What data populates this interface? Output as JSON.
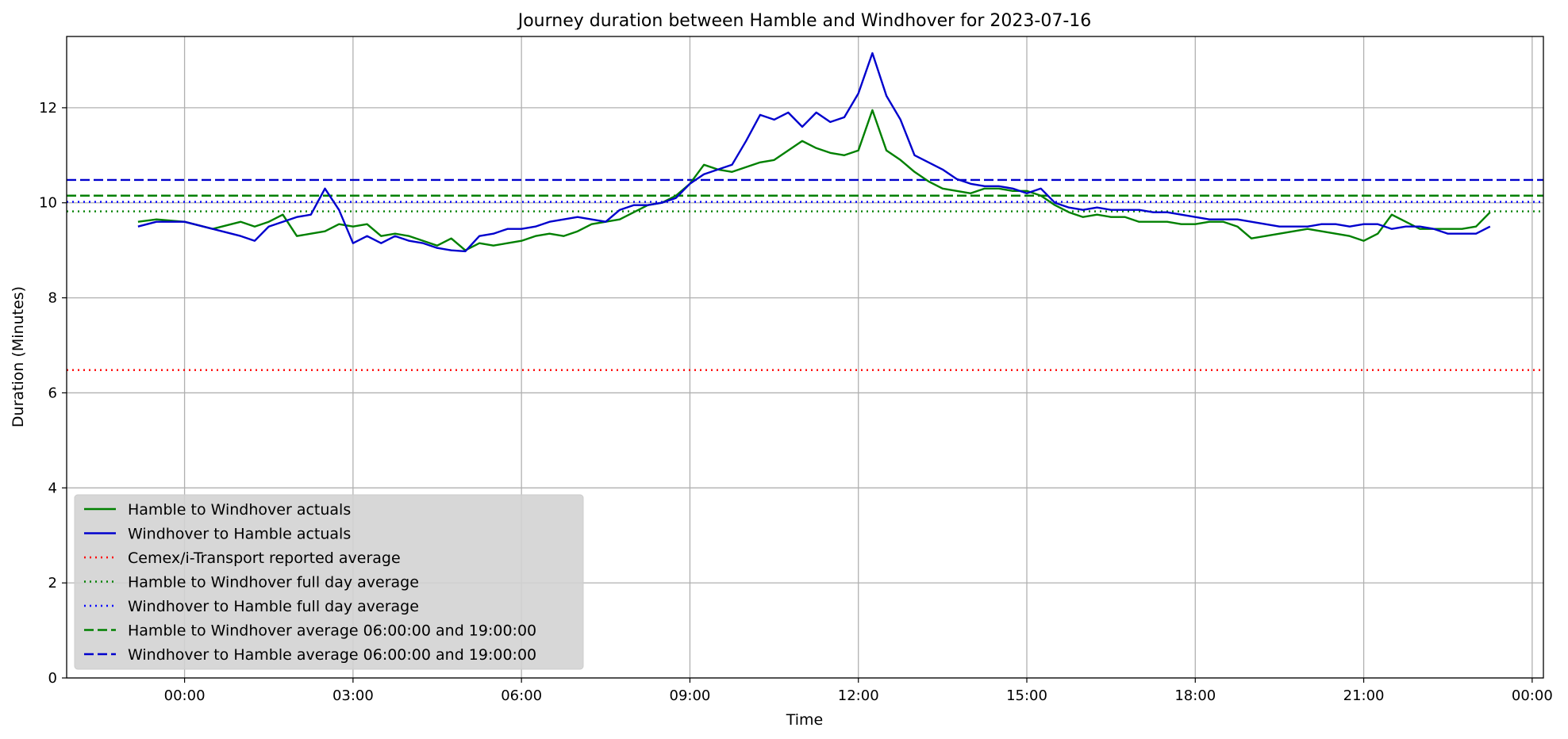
{
  "chart_data": {
    "type": "line",
    "title": "Journey duration between Hamble and Windhover for 2023-07-16",
    "xlabel": "Time",
    "ylabel": "Duration  (Minutes)",
    "ylim": [
      0,
      13.5
    ],
    "yticks": [
      0,
      2,
      4,
      6,
      8,
      10,
      12
    ],
    "xlim": [
      -2.1,
      24.2
    ],
    "xticks": [
      0,
      3,
      6,
      9,
      12,
      15,
      18,
      21,
      24
    ],
    "xtick_labels": [
      "00:00",
      "03:00",
      "06:00",
      "09:00",
      "12:00",
      "15:00",
      "18:00",
      "21:00",
      "00:00"
    ],
    "grid": true,
    "legend_position": "lower-left",
    "legend_background": "#d3d3d3",
    "series": [
      {
        "name": "Hamble to Windhover actuals",
        "color": "#008000",
        "style": "solid",
        "x": [
          -0.83,
          -0.5,
          0,
          0.5,
          1,
          1.25,
          1.5,
          1.75,
          2,
          2.25,
          2.5,
          2.75,
          3,
          3.25,
          3.5,
          3.75,
          4,
          4.25,
          4.5,
          4.75,
          5,
          5.25,
          5.5,
          5.75,
          6,
          6.25,
          6.5,
          6.75,
          7,
          7.25,
          7.5,
          7.75,
          8,
          8.25,
          8.5,
          8.75,
          9,
          9.25,
          9.5,
          9.75,
          10,
          10.25,
          10.5,
          10.75,
          11,
          11.25,
          11.5,
          11.75,
          12,
          12.25,
          12.5,
          12.75,
          13,
          13.25,
          13.5,
          13.75,
          14,
          14.25,
          14.5,
          14.75,
          15,
          15.25,
          15.5,
          15.75,
          16,
          16.25,
          16.5,
          16.75,
          17,
          17.25,
          17.5,
          17.75,
          18,
          18.25,
          18.5,
          18.75,
          19,
          19.25,
          19.5,
          19.75,
          20,
          20.25,
          20.5,
          20.75,
          21,
          21.25,
          21.5,
          21.75,
          22,
          22.25,
          22.5,
          22.75,
          23,
          23.25
        ],
        "y": [
          9.6,
          9.65,
          9.6,
          9.45,
          9.6,
          9.5,
          9.6,
          9.75,
          9.3,
          9.35,
          9.4,
          9.55,
          9.5,
          9.55,
          9.3,
          9.35,
          9.3,
          9.2,
          9.1,
          9.25,
          9.0,
          9.15,
          9.1,
          9.15,
          9.2,
          9.3,
          9.35,
          9.3,
          9.4,
          9.55,
          9.6,
          9.65,
          9.8,
          9.95,
          10.0,
          10.15,
          10.4,
          10.8,
          10.7,
          10.65,
          10.75,
          10.85,
          10.9,
          11.1,
          11.3,
          11.15,
          11.05,
          11.0,
          11.1,
          11.95,
          11.1,
          10.9,
          10.65,
          10.45,
          10.3,
          10.25,
          10.2,
          10.3,
          10.3,
          10.25,
          10.25,
          10.15,
          9.95,
          9.8,
          9.7,
          9.75,
          9.7,
          9.7,
          9.6,
          9.6,
          9.6,
          9.55,
          9.55,
          9.6,
          9.6,
          9.5,
          9.25,
          9.3,
          9.35,
          9.4,
          9.45,
          9.4,
          9.35,
          9.3,
          9.2,
          9.35,
          9.75,
          9.6,
          9.45,
          9.45,
          9.45,
          9.45,
          9.5,
          9.8
        ]
      },
      {
        "name": "Windhover to Hamble actuals",
        "color": "#0000cd",
        "style": "solid",
        "x": [
          -0.83,
          -0.5,
          0,
          0.5,
          1,
          1.25,
          1.5,
          1.75,
          2,
          2.25,
          2.5,
          2.75,
          3,
          3.25,
          3.5,
          3.75,
          4,
          4.25,
          4.5,
          4.75,
          5,
          5.25,
          5.5,
          5.75,
          6,
          6.25,
          6.5,
          6.75,
          7,
          7.25,
          7.5,
          7.75,
          8,
          8.25,
          8.5,
          8.75,
          9,
          9.25,
          9.5,
          9.75,
          10,
          10.25,
          10.5,
          10.75,
          11,
          11.25,
          11.5,
          11.75,
          12,
          12.25,
          12.5,
          12.75,
          13,
          13.25,
          13.5,
          13.75,
          14,
          14.25,
          14.5,
          14.75,
          15,
          15.25,
          15.5,
          15.75,
          16,
          16.25,
          16.5,
          16.75,
          17,
          17.25,
          17.5,
          17.75,
          18,
          18.25,
          18.5,
          18.75,
          19,
          19.25,
          19.5,
          19.75,
          20,
          20.25,
          20.5,
          20.75,
          21,
          21.25,
          21.5,
          21.75,
          22,
          22.25,
          22.5,
          22.75,
          23,
          23.25
        ],
        "y": [
          9.5,
          9.6,
          9.6,
          9.45,
          9.3,
          9.2,
          9.5,
          9.6,
          9.7,
          9.75,
          10.3,
          9.85,
          9.15,
          9.3,
          9.15,
          9.3,
          9.2,
          9.15,
          9.05,
          9.0,
          8.98,
          9.3,
          9.35,
          9.45,
          9.45,
          9.5,
          9.6,
          9.65,
          9.7,
          9.65,
          9.6,
          9.85,
          9.95,
          9.95,
          10.0,
          10.1,
          10.4,
          10.6,
          10.7,
          10.8,
          11.3,
          11.85,
          11.75,
          11.9,
          11.6,
          11.9,
          11.7,
          11.8,
          12.3,
          13.15,
          12.25,
          11.75,
          11.0,
          10.85,
          10.7,
          10.5,
          10.4,
          10.35,
          10.35,
          10.3,
          10.2,
          10.3,
          10.0,
          9.9,
          9.85,
          9.9,
          9.85,
          9.85,
          9.85,
          9.8,
          9.8,
          9.75,
          9.7,
          9.65,
          9.65,
          9.65,
          9.6,
          9.55,
          9.5,
          9.5,
          9.5,
          9.55,
          9.55,
          9.5,
          9.55,
          9.55,
          9.45,
          9.5,
          9.5,
          9.45,
          9.35,
          9.35,
          9.35,
          9.5
        ]
      },
      {
        "name": "Cemex/i-Transport reported average",
        "color": "#ff0000",
        "style": "dotted",
        "hline": 6.48
      },
      {
        "name": "Hamble to Windhover full day average",
        "color": "#008000",
        "style": "dotted",
        "hline": 9.82
      },
      {
        "name": "Windhover to Hamble full day average",
        "color": "#0000ff",
        "style": "dotted",
        "hline": 10.02
      },
      {
        "name": "Hamble to Windhover average 06:00:00 and 19:00:00",
        "color": "#008000",
        "style": "dashed",
        "hline": 10.15
      },
      {
        "name": "Windhover to Hamble average 06:00:00 and 19:00:00",
        "color": "#0000cd",
        "style": "dashed",
        "hline": 10.48
      }
    ]
  }
}
